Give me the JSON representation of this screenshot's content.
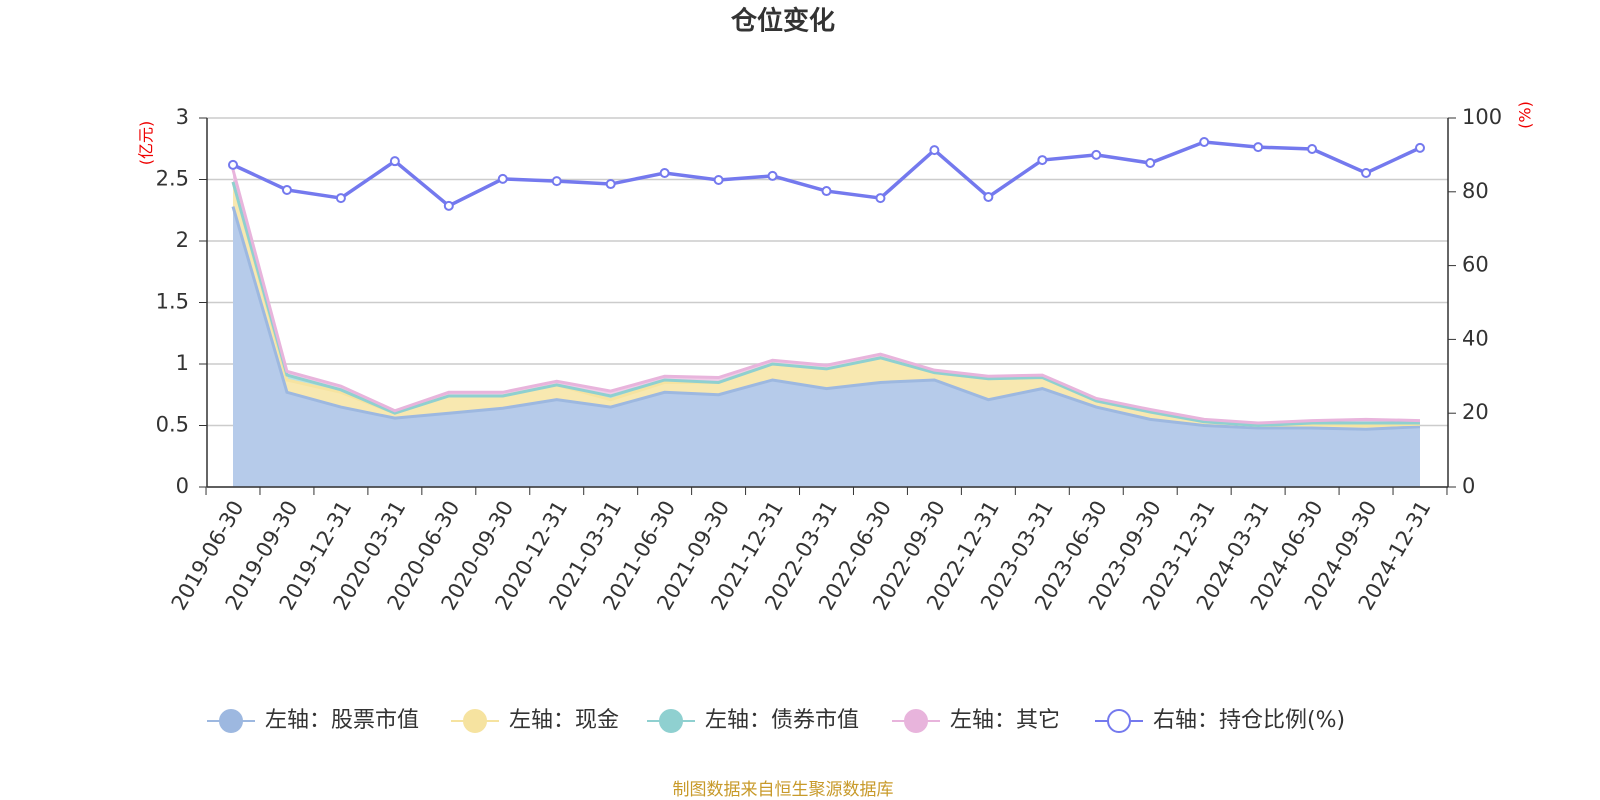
{
  "chart_data": {
    "type": "stacked-area-line",
    "title": "仓位变化",
    "y_label": "(亿元)",
    "y2_label": "(%)",
    "source": "制图数据来自恒生聚源数据库",
    "categories": [
      "2019-06-30",
      "2019-09-30",
      "2019-12-31",
      "2020-03-31",
      "2020-06-30",
      "2020-09-30",
      "2020-12-31",
      "2021-03-31",
      "2021-06-30",
      "2021-09-30",
      "2021-12-31",
      "2022-03-31",
      "2022-06-30",
      "2022-09-30",
      "2022-12-31",
      "2023-03-31",
      "2023-06-30",
      "2023-09-30",
      "2023-12-31",
      "2024-03-31",
      "2024-06-30",
      "2024-09-30",
      "2024-12-31"
    ],
    "series": [
      {
        "name": "左轴：股票市值",
        "color": "#9db8e0",
        "fill": "#b6cbea",
        "stack": true,
        "values": [
          2.28,
          0.77,
          0.65,
          0.56,
          0.6,
          0.64,
          0.71,
          0.65,
          0.77,
          0.75,
          0.87,
          0.8,
          0.85,
          0.87,
          0.71,
          0.8,
          0.65,
          0.55,
          0.5,
          0.48,
          0.48,
          0.47,
          0.49
        ]
      },
      {
        "name": "左轴：现金",
        "color": "#f6e3a0",
        "fill": "#f8e8b0",
        "stack": true,
        "values": [
          0.2,
          0.1,
          0.12,
          0.04,
          0.14,
          0.1,
          0.12,
          0.06,
          0.08,
          0.1,
          0.13,
          0.16,
          0.2,
          0.06,
          0.17,
          0.09,
          0.05,
          0.06,
          0.03,
          0.02,
          0.03,
          0.03,
          0.02
        ]
      },
      {
        "name": "左轴：债券市值",
        "color": "#8fd0d0",
        "fill": "#b8e2e2",
        "stack": true,
        "values": [
          0,
          0.04,
          0.02,
          0,
          0,
          0,
          0,
          0.03,
          0.02,
          0,
          0,
          0,
          0,
          0,
          0,
          0,
          0,
          0,
          0,
          0,
          0.01,
          0.02,
          0.01
        ]
      },
      {
        "name": "左轴：其它",
        "color": "#e8b4dc",
        "fill": "#f0cce8",
        "stack": true,
        "values": [
          0.1,
          0.03,
          0.03,
          0.02,
          0.03,
          0.03,
          0.03,
          0.04,
          0.03,
          0.04,
          0.03,
          0.03,
          0.03,
          0.02,
          0.02,
          0.02,
          0.02,
          0.02,
          0.02,
          0.02,
          0.02,
          0.03,
          0.02
        ]
      },
      {
        "name": "右轴：持仓比例(%)",
        "color": "#7479ee",
        "axis": "y2",
        "values": [
          87.3,
          80.5,
          78.3,
          88.3,
          76.2,
          83.5,
          82.9,
          82.1,
          85.1,
          83.2,
          84.3,
          80.2,
          78.3,
          91.3,
          78.6,
          88.6,
          90.0,
          87.8,
          93.5,
          92.1,
          91.6,
          85.1,
          91.9
        ]
      }
    ],
    "ylim": [
      0,
      3
    ],
    "yticks": [
      0,
      0.5,
      1,
      1.5,
      2,
      2.5,
      3
    ],
    "y2lim": [
      0,
      100
    ],
    "y2ticks": [
      0,
      20,
      40,
      60,
      80,
      100
    ],
    "grid": true,
    "legend": "bottom"
  }
}
